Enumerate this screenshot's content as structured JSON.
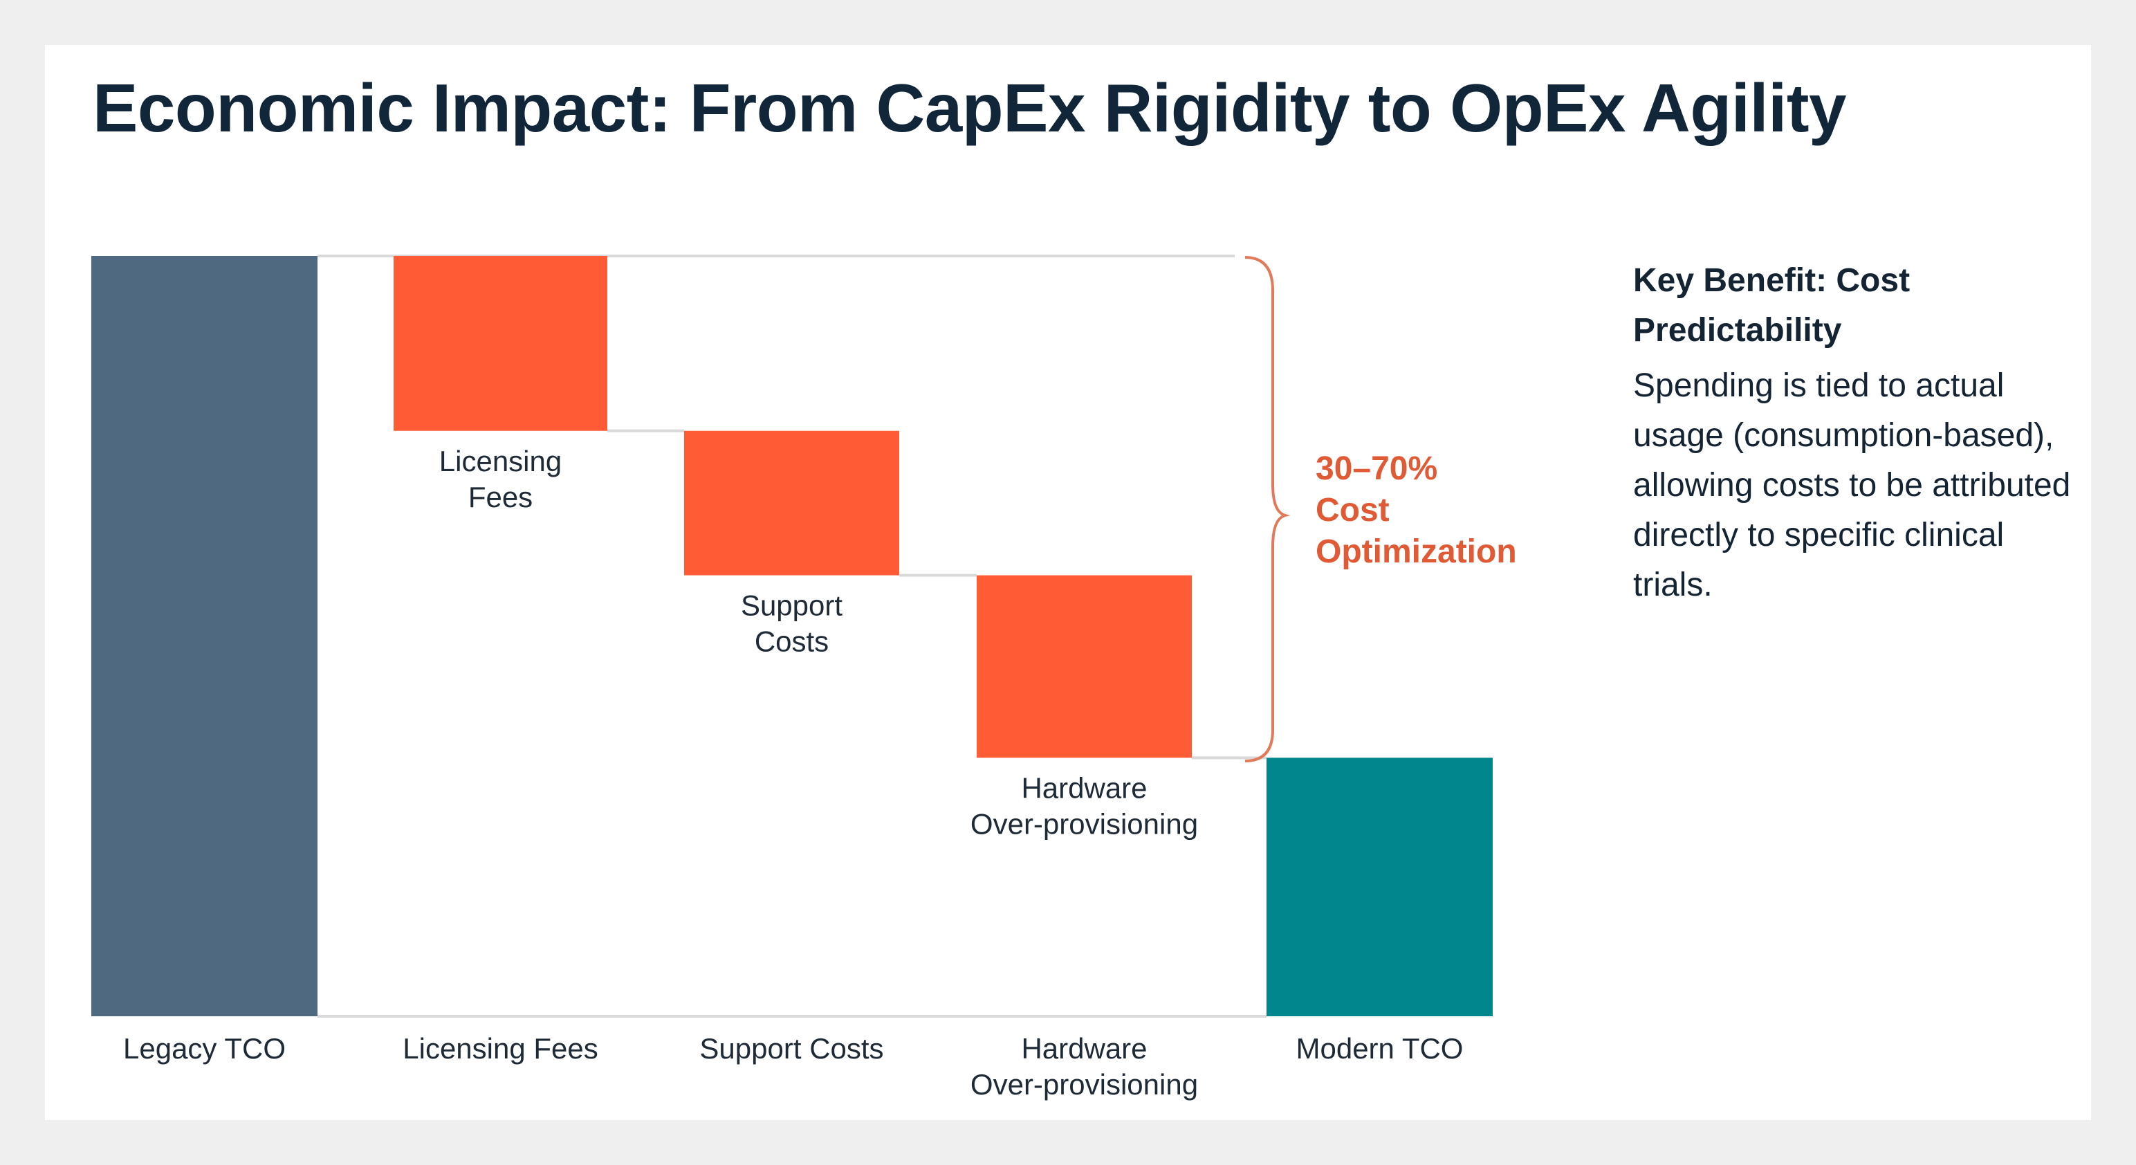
{
  "title": "Economic Impact: From CapEx Rigidity to OpEx Agility",
  "chart_data": {
    "type": "waterfall",
    "categories": [
      "Legacy TCO",
      "Licensing Fees",
      "Support Costs",
      "Hardware Over-provisioning",
      "Modern TCO"
    ],
    "category_labels": [
      [
        "Legacy TCO"
      ],
      [
        "Licensing Fees"
      ],
      [
        "Support Costs"
      ],
      [
        "Hardware",
        "Over-provisioning"
      ],
      [
        "Modern TCO"
      ]
    ],
    "bar_kinds": [
      "total",
      "decrease",
      "decrease",
      "decrease",
      "total"
    ],
    "values": [
      100,
      -23,
      -19,
      -24,
      34
    ],
    "inner_labels": [
      [],
      [
        "Licensing",
        "Fees"
      ],
      [
        "Support",
        "Costs"
      ],
      [
        "Hardware",
        "Over-provisioning"
      ],
      []
    ],
    "ylim": [
      0,
      100
    ],
    "grid": false,
    "legend": "none",
    "colors": {
      "total_legacy": "#4f6a80",
      "decrease": "#ff5c35",
      "total_modern": "#00868d",
      "connector": "#d9d9d9"
    },
    "annotation": {
      "lines": [
        "30–70%",
        "Cost",
        "Optimization"
      ],
      "color": "#e05a35"
    }
  },
  "side_panel": {
    "heading": "Key Benefit: Cost Predictability",
    "body": "Spending is tied to actual usage (consumption-based), allowing costs to be attributed directly to specific clinical trials."
  }
}
